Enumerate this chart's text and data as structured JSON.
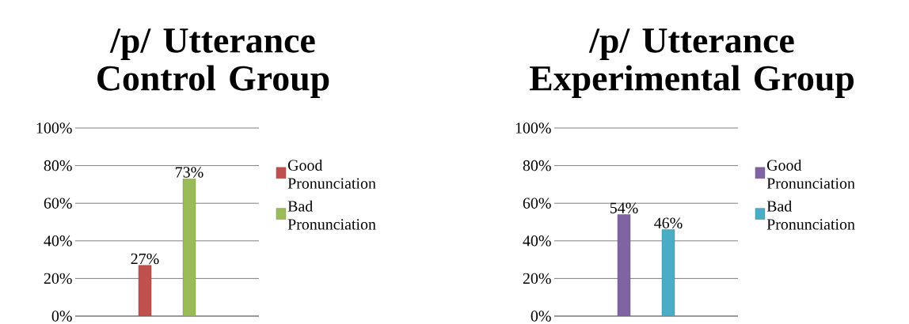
{
  "chart_data": [
    {
      "type": "bar",
      "title": "/p/ Utterance Control Group",
      "categories": [
        null
      ],
      "series": [
        {
          "name": "Good Pronunciation",
          "color": "#c0504d",
          "values": [
            27
          ],
          "value_labels": [
            "27%"
          ]
        },
        {
          "name": "Bad Pronunciation",
          "color": "#9bbb59",
          "values": [
            73
          ],
          "value_labels": [
            "73%"
          ]
        }
      ],
      "ylim": [
        0,
        100
      ],
      "yticks": [
        {
          "value": 0,
          "label": "0%"
        },
        {
          "value": 20,
          "label": "20%"
        },
        {
          "value": 40,
          "label": "40%"
        },
        {
          "value": 60,
          "label": "60%"
        },
        {
          "value": 80,
          "label": "80%"
        },
        {
          "value": 100,
          "label": "100%"
        }
      ],
      "grid": "y",
      "legend": "right"
    },
    {
      "type": "bar",
      "title": "/p/ Utterance Experimental Group",
      "categories": [
        null
      ],
      "series": [
        {
          "name": "Good Pronunciation",
          "color": "#8064a2",
          "values": [
            54
          ],
          "value_labels": [
            "54%"
          ]
        },
        {
          "name": "Bad Pronunciation",
          "color": "#4bacc6",
          "values": [
            46
          ],
          "value_labels": [
            "46%"
          ]
        }
      ],
      "ylim": [
        0,
        100
      ],
      "yticks": [
        {
          "value": 0,
          "label": "0%"
        },
        {
          "value": 20,
          "label": "20%"
        },
        {
          "value": 40,
          "label": "40%"
        },
        {
          "value": 60,
          "label": "60%"
        },
        {
          "value": 80,
          "label": "80%"
        },
        {
          "value": 100,
          "label": "100%"
        }
      ],
      "grid": "y",
      "legend": "right"
    }
  ]
}
